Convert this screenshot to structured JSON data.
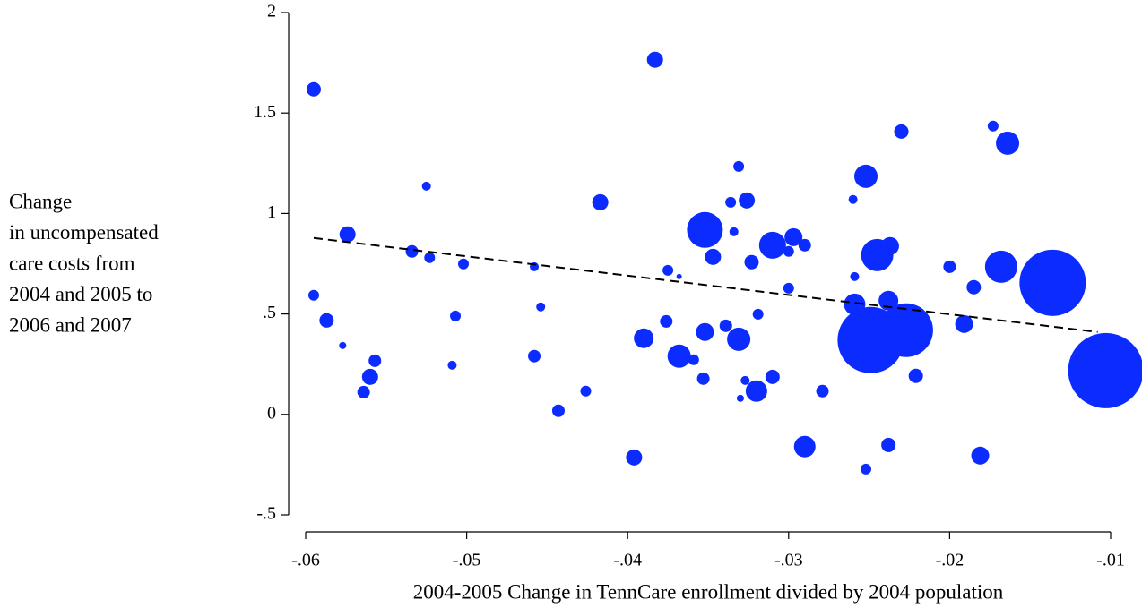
{
  "chart_data": {
    "type": "bubble",
    "xlabel": "2004-2005 Change in TennCare enrollment divided by 2004 population",
    "ylabel": [
      "Change",
      "in uncompensated",
      "care costs from",
      "2004 and 2005 to",
      "2006 and 2007"
    ],
    "xlim": [
      -0.06,
      -0.01
    ],
    "ylim": [
      -0.5,
      2
    ],
    "xticks": [
      {
        "value": -0.06,
        "label": "-.06"
      },
      {
        "value": -0.05,
        "label": "-.05"
      },
      {
        "value": -0.04,
        "label": "-.04"
      },
      {
        "value": -0.03,
        "label": "-.03"
      },
      {
        "value": -0.02,
        "label": "-.02"
      },
      {
        "value": -0.01,
        "label": "-.01"
      }
    ],
    "yticks": [
      {
        "value": -0.5,
        "label": "-.5"
      },
      0,
      {
        "value": 0.5,
        "label": ".5"
      },
      1,
      1.5,
      2
    ],
    "grid": false,
    "series": [
      {
        "color": "#0b2bff",
        "x": [
          -0.0595,
          -0.0383,
          -0.0173,
          -0.0164,
          -0.023,
          -0.0331,
          -0.0252,
          -0.0525,
          -0.0417,
          -0.0336,
          -0.0326,
          -0.026,
          -0.0352,
          -0.0334,
          -0.031,
          -0.0297,
          -0.03,
          -0.029,
          -0.0245,
          -0.0237,
          -0.0574,
          -0.0534,
          -0.0523,
          -0.0502,
          -0.0458,
          -0.0347,
          -0.0323,
          -0.0375,
          -0.0368,
          -0.02,
          -0.0168,
          -0.0136,
          -0.0185,
          -0.0259,
          -0.03,
          -0.0595,
          -0.0259,
          -0.0238,
          -0.0454,
          -0.0319,
          -0.0507,
          -0.0587,
          -0.0376,
          -0.0339,
          -0.0191,
          -0.0227,
          -0.0218,
          -0.0249,
          -0.0352,
          -0.0331,
          -0.039,
          -0.0103,
          -0.0577,
          -0.0557,
          -0.0458,
          -0.0368,
          -0.0359,
          -0.0509,
          -0.056,
          -0.0353,
          -0.0327,
          -0.031,
          -0.0221,
          -0.0564,
          -0.0426,
          -0.032,
          -0.0279,
          -0.033,
          -0.0443,
          -0.029,
          -0.0238,
          -0.0181,
          -0.0396,
          -0.0252
        ],
        "values": [
          1.618,
          1.765,
          1.435,
          1.35,
          1.408,
          1.234,
          1.185,
          1.136,
          1.056,
          1.056,
          1.065,
          1.07,
          0.918,
          0.909,
          0.842,
          0.882,
          0.811,
          0.842,
          0.793,
          0.838,
          0.896,
          0.811,
          0.78,
          0.749,
          0.735,
          0.784,
          0.758,
          0.717,
          0.686,
          0.735,
          0.735,
          0.655,
          0.633,
          0.686,
          0.628,
          0.593,
          0.548,
          0.566,
          0.535,
          0.499,
          0.49,
          0.468,
          0.463,
          0.441,
          0.45,
          0.419,
          0.383,
          0.37,
          0.41,
          0.374,
          0.379,
          0.218,
          0.343,
          0.267,
          0.29,
          0.29,
          0.272,
          0.245,
          0.187,
          0.178,
          0.169,
          0.187,
          0.192,
          0.111,
          0.116,
          0.116,
          0.116,
          0.08,
          0.018,
          -0.16,
          -0.152,
          -0.205,
          -0.214,
          -0.272
        ],
        "sizes": [
          64,
          81,
          36,
          169,
          64,
          36,
          169,
          25,
          81,
          36,
          81,
          25,
          400,
          25,
          225,
          100,
          36,
          49,
          324,
          100,
          81,
          49,
          36,
          36,
          25,
          81,
          64,
          36,
          9,
          49,
          324,
          1369,
          64,
          25,
          36,
          36,
          144,
          121,
          25,
          36,
          36,
          64,
          49,
          49,
          100,
          900,
          100,
          1369,
          100,
          169,
          121,
          1764,
          16,
          49,
          49,
          169,
          36,
          25,
          81,
          49,
          25,
          64,
          64,
          49,
          36,
          144,
          49,
          16,
          49,
          144,
          64,
          100,
          81,
          36
        ]
      }
    ],
    "fit_line": {
      "x": [
        -0.0595,
        -0.0108
      ],
      "y": [
        0.878,
        0.41
      ],
      "color": "#000000"
    }
  }
}
